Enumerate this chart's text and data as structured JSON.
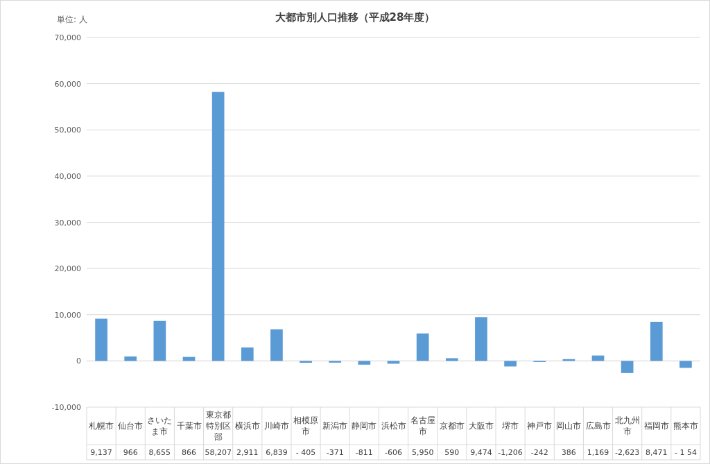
{
  "chart_data": {
    "type": "bar",
    "title": "大都市別人口推移（平成28年度）",
    "ylabel": "単位: 人",
    "categories": [
      "札幌市",
      "仙台市",
      "さいたま市",
      "千葉市",
      "東京都特別区部",
      "横浜市",
      "川崎市",
      "相模原市",
      "新潟市",
      "静岡市",
      "浜松市",
      "名古屋市",
      "京都市",
      "大阪市",
      "堺市",
      "神戸市",
      "岡山市",
      "広島市",
      "北九州市",
      "福岡市",
      "熊本市"
    ],
    "values": [
      9137,
      966,
      8655,
      866,
      58207,
      2911,
      6839,
      -405,
      -371,
      -811,
      -606,
      5950,
      590,
      9474,
      -1206,
      -242,
      386,
      1169,
      -2623,
      8471,
      -1500
    ],
    "value_labels": [
      "9,137",
      "966",
      "8,655",
      "866",
      "58,207",
      "2,911",
      "6,839",
      "- 405",
      "-371",
      "-811",
      "-606",
      "5,950",
      "590",
      "9,474",
      "-1,206",
      "-242",
      "386",
      "1,169",
      "-2,623",
      "8,471",
      "- 1 54"
    ],
    "color": "#5b9bd5",
    "ylim": [
      -10000,
      70000
    ],
    "yticks": [
      {
        "value": -10000,
        "label": "-10,000"
      },
      {
        "value": 0,
        "label": "0"
      },
      {
        "value": 10000,
        "label": "10,000"
      },
      {
        "value": 20000,
        "label": "20,000"
      },
      {
        "value": 30000,
        "label": "30,000"
      },
      {
        "value": 40000,
        "label": "40,000"
      },
      {
        "value": 50000,
        "label": "50,000"
      },
      {
        "value": 60000,
        "label": "60,000"
      },
      {
        "value": 70000,
        "label": "70,000"
      }
    ],
    "grid": "y"
  }
}
